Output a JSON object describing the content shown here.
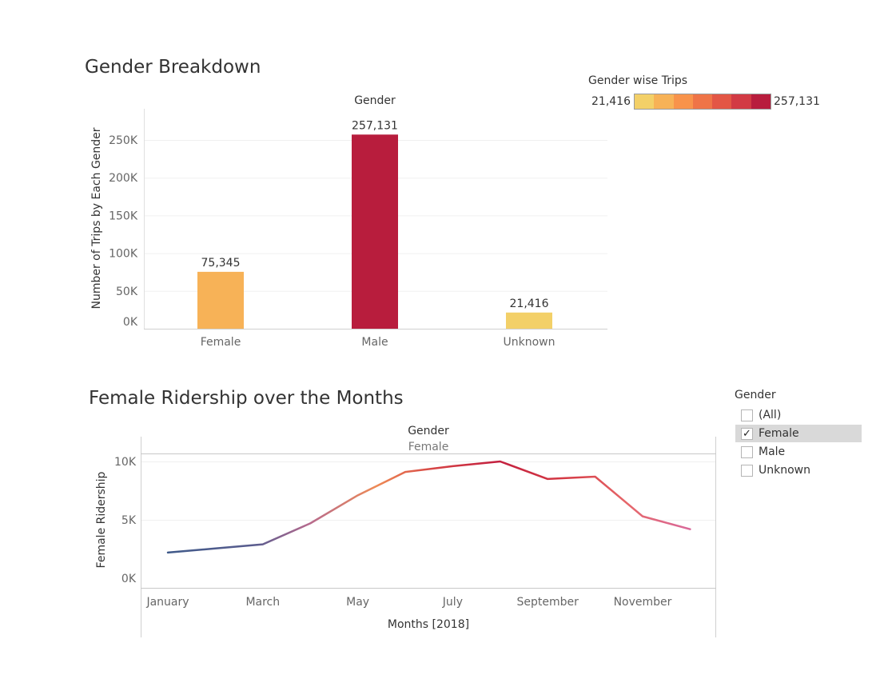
{
  "gender_chart": {
    "title": "Gender Breakdown",
    "header": "Gender",
    "ylabel": "Number of Trips by Each Gender"
  },
  "legend": {
    "title": "Gender wise Trips",
    "min_label": "21,416",
    "max_label": "257,131",
    "colors": [
      "#f3d068",
      "#f7b257",
      "#f8934b",
      "#ef7447",
      "#e35645",
      "#d23a44",
      "#b81d3d"
    ]
  },
  "female_chart": {
    "title": "Female Ridership over the Months",
    "header": "Gender",
    "subheader": "Female",
    "ylabel": "Female Ridership",
    "xlabel": "Months [2018]"
  },
  "filter": {
    "title": "Gender",
    "options": [
      {
        "label": "(All)",
        "checked": false
      },
      {
        "label": "Female",
        "checked": true
      },
      {
        "label": "Male",
        "checked": false
      },
      {
        "label": "Unknown",
        "checked": false
      }
    ]
  },
  "chart_data": [
    {
      "type": "bar",
      "title": "Gender Breakdown",
      "xlabel": "",
      "ylabel": "Number of Trips by Each Gender",
      "categories": [
        "Female",
        "Male",
        "Unknown"
      ],
      "values": [
        75345,
        257131,
        21416
      ],
      "value_labels": [
        "75,345",
        "257,131",
        "21,416"
      ],
      "colors": [
        "#f7b257",
        "#b81d3d",
        "#f3d068"
      ],
      "ylim": [
        0,
        285000
      ],
      "yticks": [
        0,
        50000,
        100000,
        150000,
        200000,
        250000
      ],
      "ytick_labels": [
        "0K",
        "50K",
        "100K",
        "150K",
        "200K",
        "250K"
      ],
      "grid": true
    },
    {
      "type": "line",
      "title": "Female Ridership over the Months",
      "xlabel": "Months [2018]",
      "ylabel": "Female Ridership",
      "x": [
        "January",
        "February",
        "March",
        "April",
        "May",
        "June",
        "July",
        "August",
        "September",
        "October",
        "November",
        "December"
      ],
      "xtick_labels": [
        "January",
        "March",
        "May",
        "July",
        "September",
        "November"
      ],
      "values": [
        2200,
        2550,
        2900,
        4700,
        7100,
        9100,
        9600,
        10000,
        8500,
        8700,
        5300,
        4200
      ],
      "ylim": [
        0,
        10600
      ],
      "yticks": [
        0,
        5000,
        10000
      ],
      "ytick_labels": [
        "0K",
        "5K",
        "10K"
      ],
      "grid": true
    }
  ]
}
